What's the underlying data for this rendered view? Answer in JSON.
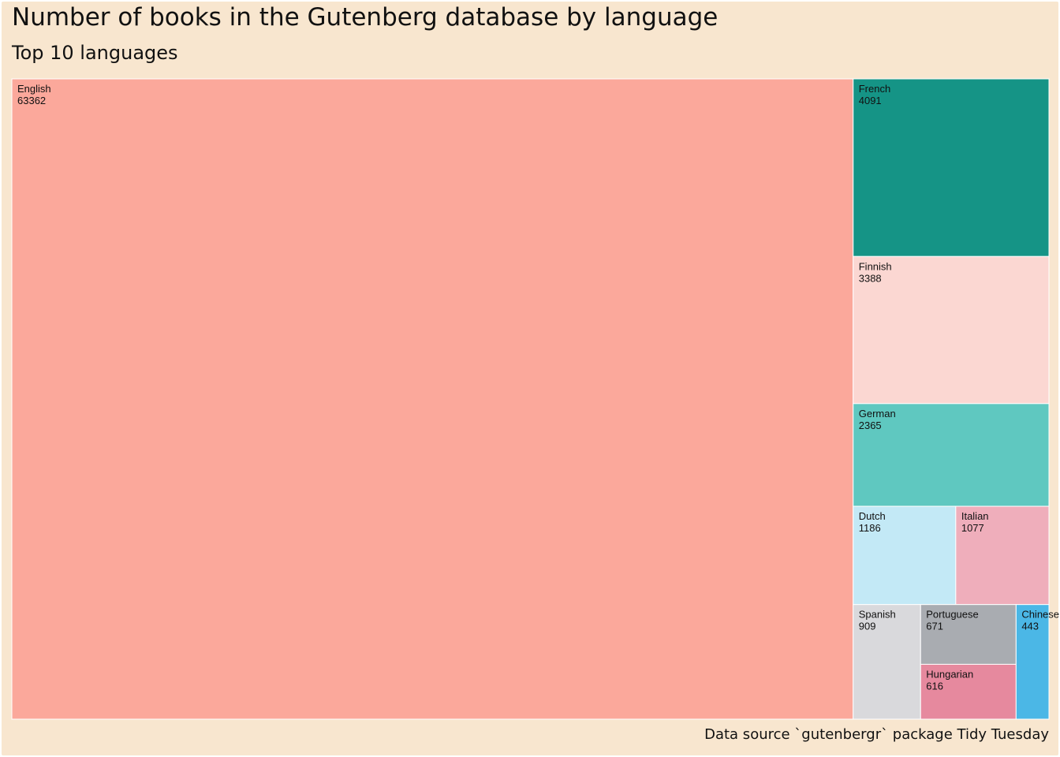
{
  "chart_data": {
    "type": "treemap",
    "title": "Number of books in the Gutenberg database by language",
    "subtitle": "Top 10 languages",
    "caption": "Data source `gutenbergr` package Tidy Tuesday",
    "items": [
      {
        "name": "English",
        "value": 63362,
        "color": "#fba89b"
      },
      {
        "name": "French",
        "value": 4091,
        "color": "#159486"
      },
      {
        "name": "Finnish",
        "value": 3388,
        "color": "#fbd7d2"
      },
      {
        "name": "German",
        "value": 2365,
        "color": "#5fc8c0"
      },
      {
        "name": "Dutch",
        "value": 1186,
        "color": "#c3e9f6"
      },
      {
        "name": "Italian",
        "value": 1077,
        "color": "#efaebb"
      },
      {
        "name": "Spanish",
        "value": 909,
        "color": "#d9d9dc"
      },
      {
        "name": "Portuguese",
        "value": 671,
        "color": "#a9acb1"
      },
      {
        "name": "Hungarian",
        "value": 616,
        "color": "#e6899e"
      },
      {
        "name": "Chinese",
        "value": 443,
        "color": "#4bb7e6"
      }
    ]
  }
}
